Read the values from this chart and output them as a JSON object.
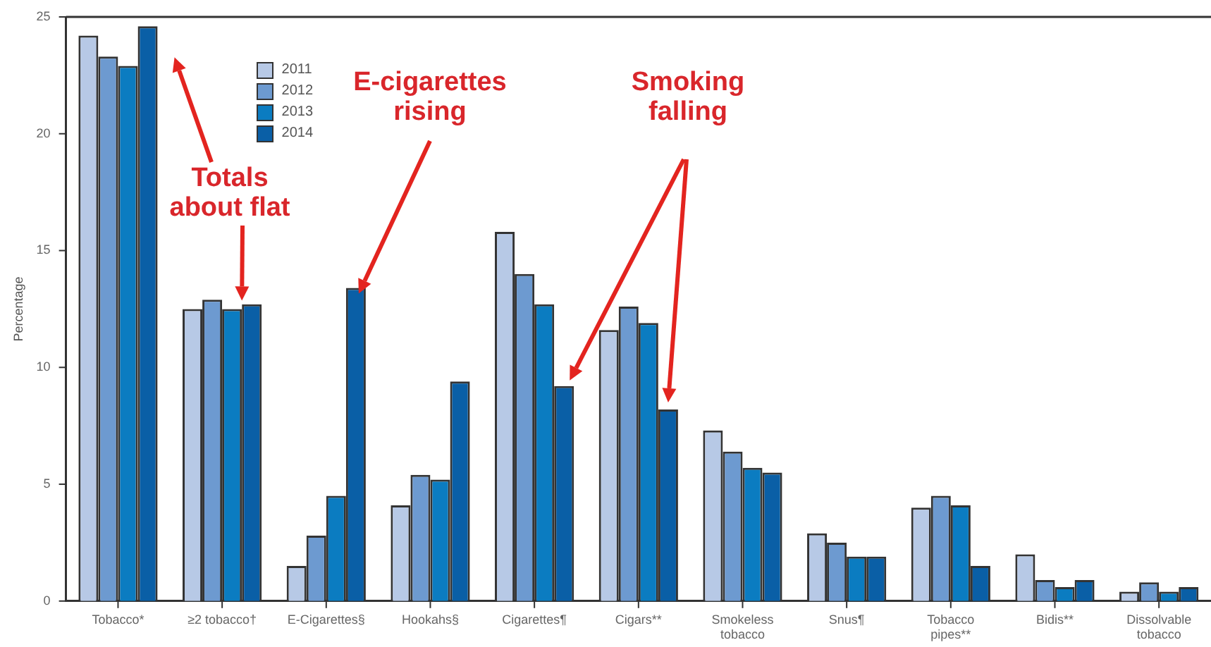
{
  "chart_data": {
    "type": "bar",
    "ylabel": "Percentage",
    "categories": [
      "Tobacco*",
      "≥2 tobacco†",
      "E-Cigarettes§",
      "Hookahs§",
      "Cigarettes¶",
      "Cigars**",
      "Smokeless tobacco",
      "Snus¶",
      "Tobacco pipes**",
      "Bidis**",
      "Dissolvable tobacco"
    ],
    "series": [
      {
        "name": "2011",
        "color": "#b7c9e6",
        "values": [
          24.2,
          12.5,
          1.5,
          4.1,
          15.8,
          11.6,
          7.3,
          2.9,
          4.0,
          2.0,
          0.4
        ]
      },
      {
        "name": "2012",
        "color": "#6d9ad0",
        "values": [
          23.3,
          12.9,
          2.8,
          5.4,
          14.0,
          12.6,
          6.4,
          2.5,
          4.5,
          0.9,
          0.8
        ]
      },
      {
        "name": "2013",
        "color": "#0b7cc1",
        "values": [
          22.9,
          12.5,
          4.5,
          5.2,
          12.7,
          11.9,
          5.7,
          1.9,
          4.1,
          0.6,
          0.4
        ]
      },
      {
        "name": "2014",
        "color": "#0a5fa6",
        "values": [
          24.6,
          12.7,
          13.4,
          9.4,
          9.2,
          8.2,
          5.5,
          1.9,
          1.5,
          0.9,
          0.6
        ]
      }
    ],
    "ylim": [
      0,
      25
    ],
    "yticks": [
      0,
      5,
      10,
      15,
      20,
      25
    ],
    "grid": false,
    "legend": "top left",
    "annotations": [
      "Totals about flat",
      "E-cigarettes rising",
      "Smoking falling"
    ]
  }
}
